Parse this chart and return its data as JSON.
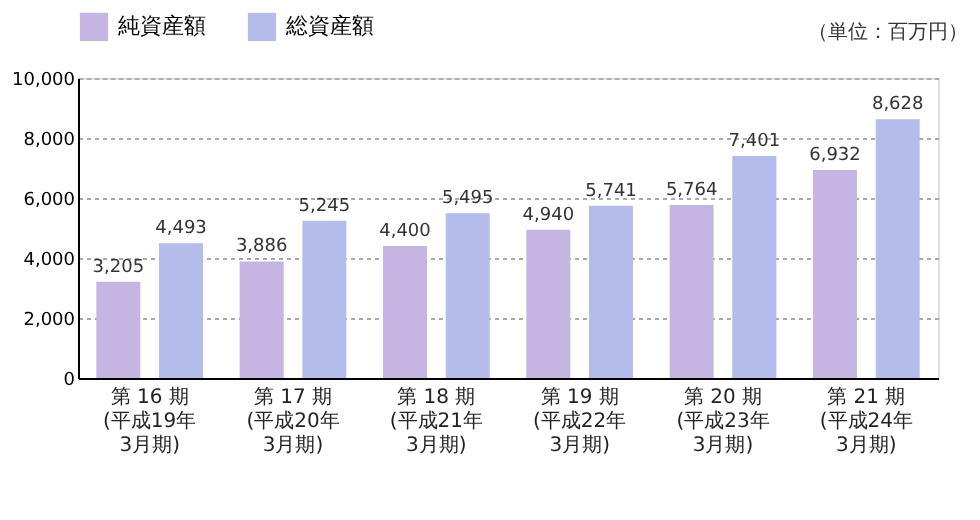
{
  "chart_data": {
    "type": "bar",
    "categories": [
      "第 16 期\n(平成19年\n3月期)",
      "第 17 期\n(平成20年\n3月期)",
      "第 18 期\n(平成21年\n3月期)",
      "第 19 期\n(平成22年\n3月期)",
      "第 20 期\n(平成23年\n3月期)",
      "第 21 期\n(平成24年\n3月期)"
    ],
    "series": [
      {
        "name": "純資産額",
        "color": "#c4b5e2",
        "values": [
          3205,
          3886,
          4400,
          4940,
          5764,
          6932
        ],
        "value_labels": [
          "3,205",
          "3,886",
          "4,400",
          "4,940",
          "5,764",
          "6,932"
        ]
      },
      {
        "name": "総資産額",
        "color": "#b4bcec",
        "values": [
          4493,
          5245,
          5495,
          5741,
          7401,
          8628
        ],
        "value_labels": [
          "4,493",
          "5,245",
          "5,495",
          "5,741",
          "7,401",
          "8,628"
        ]
      }
    ],
    "ylim": [
      0,
      10000
    ],
    "yticks": [
      0,
      {
        "value": 2000,
        "label": "2,000"
      },
      {
        "value": 4000,
        "label": "4,000"
      },
      {
        "value": 6000,
        "label": "6,000"
      },
      {
        "value": 8000,
        "label": "8,000"
      },
      {
        "value": 10000,
        "label": "10,000"
      }
    ],
    "grid": "y",
    "legend": "top left",
    "annotations": [
      "（単位：百万円）"
    ]
  }
}
